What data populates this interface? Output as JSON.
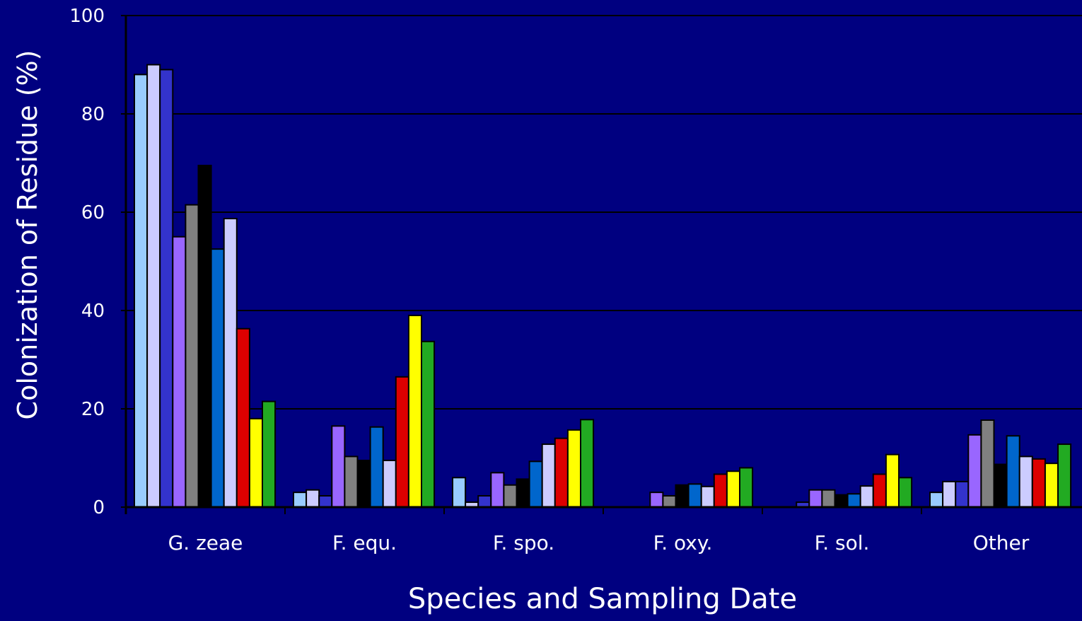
{
  "chart_data": {
    "type": "bar",
    "title": "",
    "xlabel": "Species and Sampling Date",
    "ylabel": "Colonization of Residue (%)",
    "ylim": [
      0,
      100
    ],
    "yticks": [
      0,
      20,
      40,
      60,
      80,
      100
    ],
    "grid": true,
    "legend": "none",
    "categories": [
      "G. zeae",
      "F. equ.",
      "F. spo.",
      "F. oxy.",
      "F. sol.",
      "Other"
    ],
    "series": [
      {
        "color": "#99CCFF",
        "values": [
          88,
          3,
          6,
          0,
          0,
          3
        ]
      },
      {
        "color": "#CCCCFF",
        "values": [
          90,
          3.5,
          1,
          0,
          0,
          5.2
        ]
      },
      {
        "color": "#3333CC",
        "values": [
          89,
          2.3,
          2.3,
          0,
          1,
          5.2
        ]
      },
      {
        "color": "#9966FF",
        "values": [
          55,
          16.5,
          7,
          3,
          3.5,
          14.7
        ]
      },
      {
        "color": "#808080",
        "values": [
          61.5,
          10.3,
          4.5,
          2.3,
          3.5,
          17.7
        ]
      },
      {
        "color": "#000000",
        "values": [
          69.5,
          9.5,
          5.7,
          4.5,
          2.5,
          8.7
        ]
      },
      {
        "color": "#0066CC",
        "values": [
          52.5,
          16.3,
          9.3,
          4.7,
          2.7,
          14.5
        ]
      },
      {
        "color": "#CCCCFF",
        "values": [
          58.7,
          9.5,
          12.8,
          4.2,
          4.3,
          10.3
        ]
      },
      {
        "color": "#DD0000",
        "values": [
          36.3,
          26.5,
          14,
          6.7,
          6.7,
          9.8
        ]
      },
      {
        "color": "#FFFF00",
        "values": [
          18,
          39,
          15.7,
          7.3,
          10.7,
          8.9
        ]
      },
      {
        "color": "#22AA22",
        "values": [
          21.5,
          33.7,
          17.8,
          8,
          6,
          12.8
        ]
      }
    ]
  }
}
